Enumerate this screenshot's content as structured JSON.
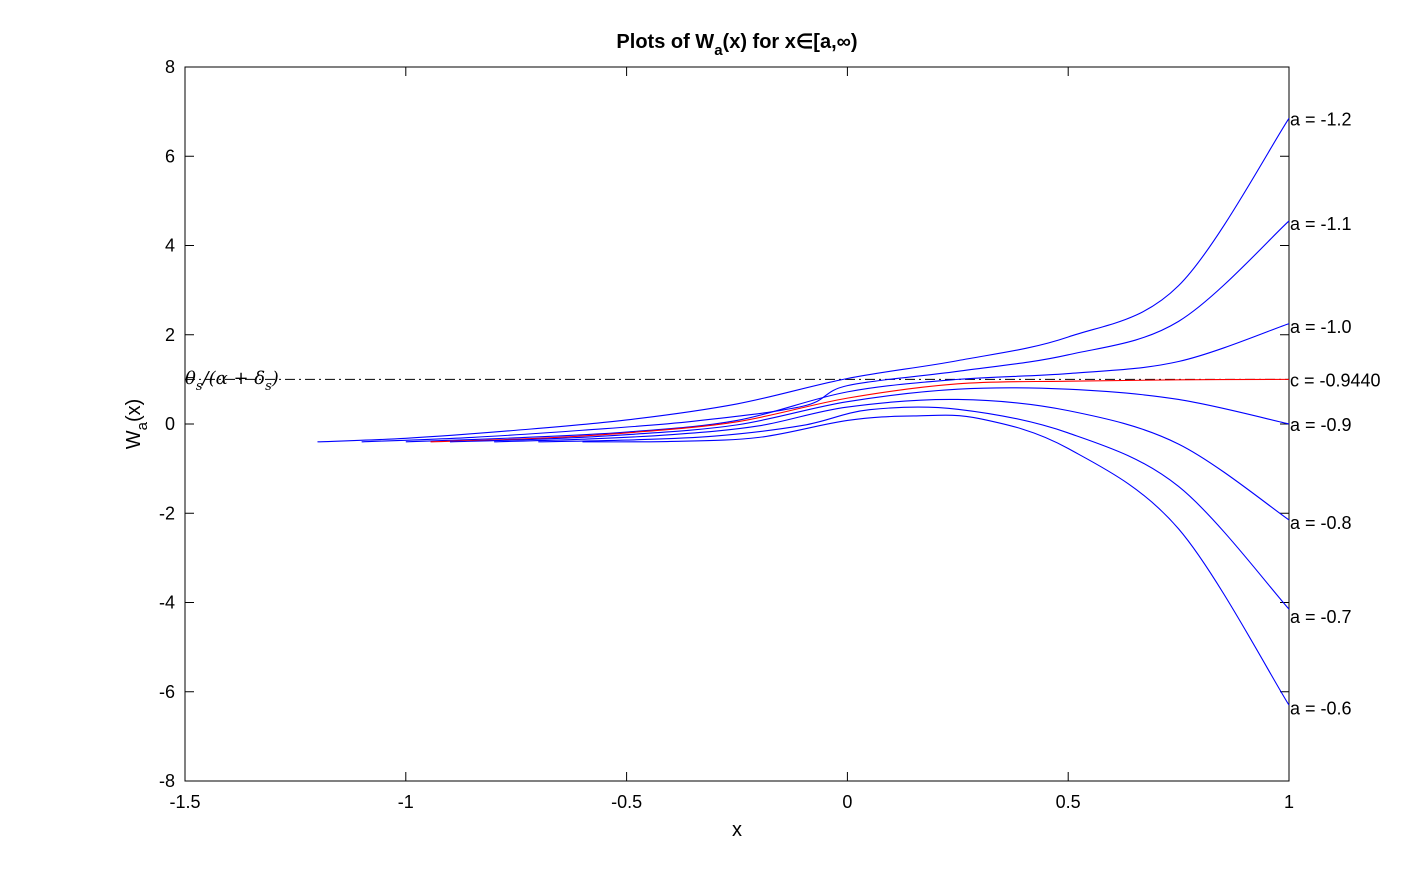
{
  "chart_data": {
    "type": "line",
    "title": "Plots of W_a(x) for x∈[a,∞)",
    "title_parts": {
      "main": "Plots of W",
      "sub": "a",
      "rest": "(x) for x∈[a,∞)"
    },
    "xlabel": "x",
    "ylabel": "W_a(x)",
    "ylabel_parts": {
      "main": "W",
      "sub": "a",
      "rest": "(x)"
    },
    "xlim": [
      -1.5,
      1
    ],
    "ylim": [
      -8,
      8
    ],
    "xticks": [
      -1.5,
      -1,
      -0.5,
      0,
      0.5,
      1
    ],
    "xtick_labels": [
      "-1.5",
      "-1",
      "-0.5",
      "0",
      "0.5",
      "1"
    ],
    "yticks": [
      -8,
      -6,
      -4,
      -2,
      0,
      2,
      4,
      6,
      8
    ],
    "ytick_labels": [
      "-8",
      "-6",
      "-4",
      "-2",
      "0",
      "2",
      "4",
      "6",
      "8"
    ],
    "grid": false,
    "reference_line": {
      "y": 1.0,
      "style": "dash-dot",
      "color": "#000000",
      "label": "θs/(α + δs)"
    },
    "series": [
      {
        "name": "a = -1.2",
        "color": "#0000ff",
        "x": [
          -1.2,
          -1.0,
          -0.75,
          -0.5,
          -0.25,
          0,
          0.25,
          0.5,
          0.75,
          1
        ],
        "y": [
          -0.4,
          -0.32,
          -0.14,
          0.09,
          0.45,
          1.02,
          1.42,
          1.95,
          3.1,
          6.85
        ]
      },
      {
        "name": "a = -1.1",
        "color": "#0000ff",
        "x": [
          -1.1,
          -0.85,
          -0.6,
          -0.35,
          -0.1,
          0,
          0.25,
          0.5,
          0.75,
          1
        ],
        "y": [
          -0.4,
          -0.3,
          -0.14,
          0.06,
          0.4,
          0.86,
          1.18,
          1.55,
          2.3,
          4.55
        ]
      },
      {
        "name": "a = -1.0",
        "color": "#0000ff",
        "x": [
          -1.0,
          -0.75,
          -0.5,
          -0.25,
          0,
          0.25,
          0.5,
          0.75,
          1
        ],
        "y": [
          -0.4,
          -0.31,
          -0.18,
          0.08,
          0.72,
          1.0,
          1.13,
          1.4,
          2.25
        ]
      },
      {
        "name": "c = -0.9440",
        "color": "#ff0000",
        "x": [
          -0.944,
          -0.7,
          -0.5,
          -0.25,
          0,
          0.25,
          0.5,
          0.75,
          1
        ],
        "y": [
          -0.4,
          -0.32,
          -0.2,
          0.05,
          0.58,
          0.9,
          0.96,
          0.99,
          1.0
        ]
      },
      {
        "name": "a = -0.9",
        "color": "#0000ff",
        "x": [
          -0.9,
          -0.7,
          -0.5,
          -0.25,
          0,
          0.25,
          0.5,
          0.75,
          1
        ],
        "y": [
          -0.4,
          -0.34,
          -0.24,
          -0.02,
          0.5,
          0.78,
          0.78,
          0.55,
          0.0
        ]
      },
      {
        "name": "a = -0.8",
        "color": "#0000ff",
        "x": [
          -0.8,
          -0.6,
          -0.4,
          -0.2,
          0,
          0.25,
          0.5,
          0.75,
          1
        ],
        "y": [
          -0.4,
          -0.34,
          -0.24,
          -0.04,
          0.38,
          0.55,
          0.3,
          -0.45,
          -2.15
        ]
      },
      {
        "name": "a = -0.7",
        "color": "#0000ff",
        "x": [
          -0.7,
          -0.5,
          -0.3,
          -0.1,
          0.05,
          0.25,
          0.5,
          0.75,
          1
        ],
        "y": [
          -0.4,
          -0.36,
          -0.27,
          -0.03,
          0.32,
          0.33,
          -0.2,
          -1.4,
          -4.15
        ]
      },
      {
        "name": "a = -0.6",
        "color": "#0000ff",
        "x": [
          -0.6,
          -0.4,
          -0.2,
          0,
          0.15,
          0.3,
          0.5,
          0.75,
          1
        ],
        "y": [
          -0.4,
          -0.39,
          -0.3,
          0.08,
          0.18,
          0.12,
          -0.55,
          -2.35,
          -6.3
        ]
      }
    ],
    "curve_labels": [
      {
        "text": "a = -1.2",
        "y": 6.85
      },
      {
        "text": "a = -1.1",
        "y": 4.5
      },
      {
        "text": "a = -1.0",
        "y": 2.2
      },
      {
        "text": "c = -0.9440",
        "y": 1.0
      },
      {
        "text": "a = -0.9",
        "y": 0.0
      },
      {
        "text": "a = -0.8",
        "y": -2.2
      },
      {
        "text": "a = -0.7",
        "y": -4.3
      },
      {
        "text": "a = -0.6",
        "y": -6.35
      }
    ]
  }
}
